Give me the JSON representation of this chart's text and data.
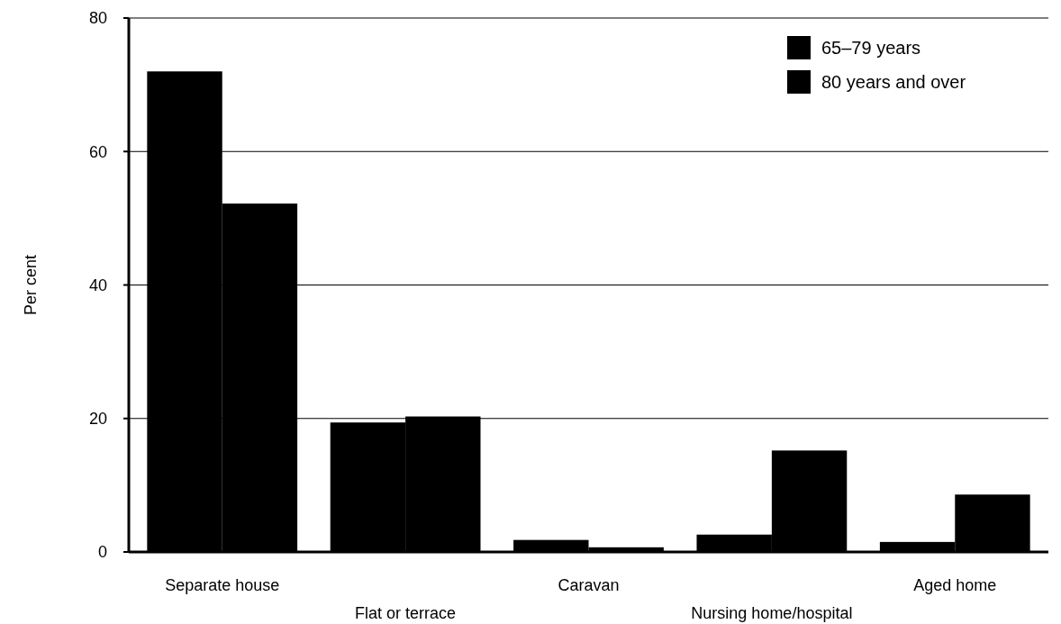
{
  "chart_data": {
    "type": "bar",
    "ylabel": "Per cent",
    "categories": [
      "Separate house",
      "Flat or terrace",
      "Caravan",
      "Nursing home/hospital",
      "Aged home"
    ],
    "series": [
      {
        "name": "65–79 years",
        "color": "#000000",
        "values": [
          72,
          19.4,
          1.8,
          2.6,
          1.5
        ]
      },
      {
        "name": "80 years and over",
        "color": "#000000",
        "values": [
          52.2,
          20.3,
          0.7,
          15.2,
          8.6
        ]
      }
    ],
    "ylim": [
      0,
      80
    ],
    "yticks": [
      0,
      20,
      40,
      60,
      80
    ],
    "grid": "y",
    "legend": "top right"
  }
}
